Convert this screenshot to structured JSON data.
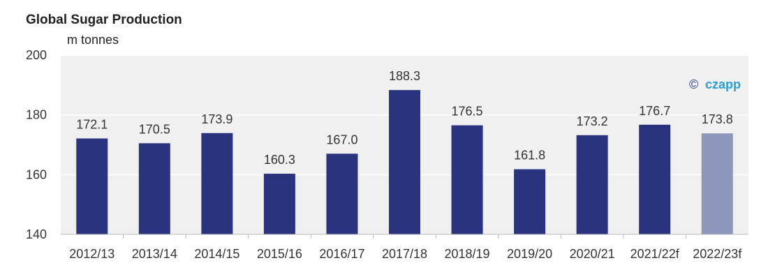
{
  "chart_data": {
    "type": "bar",
    "title": "Global Sugar Production",
    "unit_label": "m tonnes",
    "categories": [
      "2012/13",
      "2013/14",
      "2014/15",
      "2015/16",
      "2016/17",
      "2017/18",
      "2018/19",
      "2019/20",
      "2020/21",
      "2021/22f",
      "2022/23f"
    ],
    "values": [
      172.1,
      170.5,
      173.9,
      160.3,
      167.0,
      188.3,
      176.5,
      161.8,
      173.2,
      176.7,
      173.8
    ],
    "value_labels": [
      "172.1",
      "170.5",
      "173.9",
      "160.3",
      "167.0",
      "188.3",
      "176.5",
      "161.8",
      "173.2",
      "176.7",
      "173.8"
    ],
    "ylim": [
      140,
      200
    ],
    "yticks": [
      "140",
      "160",
      "180",
      "200"
    ],
    "grid": true,
    "colors": {
      "bar": "#2a347e",
      "forecast_bar": "#8f96bb",
      "plot_bg": "#f0f0f0",
      "grid": "#ffffff"
    },
    "forecast_index": 10
  },
  "watermark": {
    "copyright": "©",
    "brand": "czapp"
  }
}
